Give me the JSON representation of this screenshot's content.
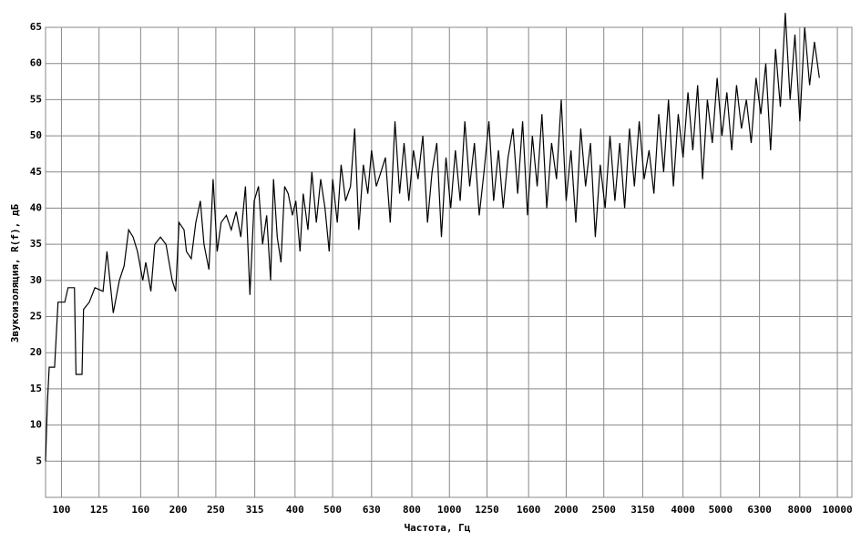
{
  "chart_data": {
    "type": "line",
    "x_label": "Частота, Гц",
    "y_label": "Звукоизоляция, R(f), дБ",
    "xscale": "log",
    "grid": true,
    "color": "#000000",
    "xlim": [
      91,
      10900
    ],
    "ylim": [
      0,
      65
    ],
    "xticks": [
      100,
      125,
      160,
      200,
      250,
      315,
      400,
      500,
      630,
      800,
      1000,
      1250,
      1600,
      2000,
      2500,
      3150,
      4000,
      5000,
      6300,
      8000,
      10000
    ],
    "yticks": [
      5,
      10,
      15,
      20,
      25,
      30,
      35,
      40,
      45,
      50,
      55,
      60,
      65
    ],
    "x": [
      91,
      92,
      93,
      96,
      98,
      102,
      104,
      108,
      109,
      113,
      114,
      118,
      122,
      128,
      131,
      136,
      141,
      145,
      149,
      153,
      157,
      162,
      165,
      170,
      174,
      180,
      186,
      193,
      197,
      201,
      207,
      210,
      216,
      222,
      228,
      233,
      240,
      246,
      252,
      258,
      266,
      274,
      282,
      290,
      298,
      306,
      314,
      322,
      330,
      338,
      346,
      352,
      360,
      368,
      376,
      384,
      394,
      402,
      412,
      420,
      432,
      442,
      454,
      466,
      478,
      490,
      500,
      514,
      526,
      540,
      556,
      570,
      584,
      600,
      616,
      630,
      648,
      666,
      684,
      704,
      724,
      744,
      764,
      786,
      808,
      830,
      854,
      878,
      902,
      928,
      954,
      980,
      1008,
      1036,
      1066,
      1096,
      1128,
      1160,
      1194,
      1228,
      1264,
      1300,
      1338,
      1376,
      1416,
      1458,
      1500,
      1544,
      1590,
      1636,
      1684,
      1732,
      1782,
      1834,
      1888,
      1942,
      2000,
      2058,
      2118,
      2180,
      2244,
      2310,
      2378,
      2448,
      2520,
      2594,
      2670,
      2748,
      2830,
      2912,
      2998,
      3086,
      3176,
      3270,
      3366,
      3464,
      3566,
      3670,
      3778,
      3888,
      4002,
      4120,
      4240,
      4364,
      4492,
      4624,
      4760,
      4900,
      5042,
      5190,
      5342,
      5498,
      5660,
      5826,
      5996,
      6172,
      6352,
      6538,
      6730,
      6928,
      7130,
      7340,
      7554,
      7776,
      8004,
      8238,
      8480,
      8728,
      8984
    ],
    "values": [
      5,
      13,
      18,
      18,
      27,
      27,
      29,
      29,
      17,
      17,
      26,
      27,
      29,
      28.5,
      34,
      25.5,
      30,
      32,
      37,
      36,
      34,
      30,
      32.5,
      28.5,
      35,
      36,
      35,
      30,
      28.5,
      38,
      37,
      34,
      33,
      38,
      41,
      35,
      31.5,
      44,
      34,
      38,
      39,
      37,
      39.5,
      36,
      43,
      28,
      41,
      43,
      35,
      39,
      30,
      44,
      36,
      32.5,
      43,
      42,
      39,
      41,
      34,
      42,
      37,
      45,
      38,
      44,
      40,
      34,
      44,
      38,
      46,
      41,
      43,
      51,
      37,
      46,
      42,
      48,
      43,
      45,
      47,
      38,
      52,
      42,
      49,
      41,
      48,
      44,
      50,
      38,
      45,
      49,
      36,
      47,
      40,
      48,
      41,
      52,
      43,
      49,
      39,
      45,
      52,
      41,
      48,
      40,
      47,
      51,
      42,
      52,
      39,
      50,
      43,
      53,
      40,
      49,
      44,
      55,
      41,
      48,
      38,
      51,
      43,
      49,
      36,
      46,
      40,
      50,
      41,
      49,
      40,
      51,
      43,
      52,
      44,
      48,
      42,
      53,
      45,
      55,
      43,
      53,
      47,
      56,
      48,
      57,
      44,
      55,
      49,
      58,
      50,
      56,
      48,
      57,
      51,
      55,
      49,
      58,
      53,
      60,
      48,
      62,
      54,
      67,
      55,
      64,
      52,
      65,
      57,
      63,
      58
    ]
  }
}
